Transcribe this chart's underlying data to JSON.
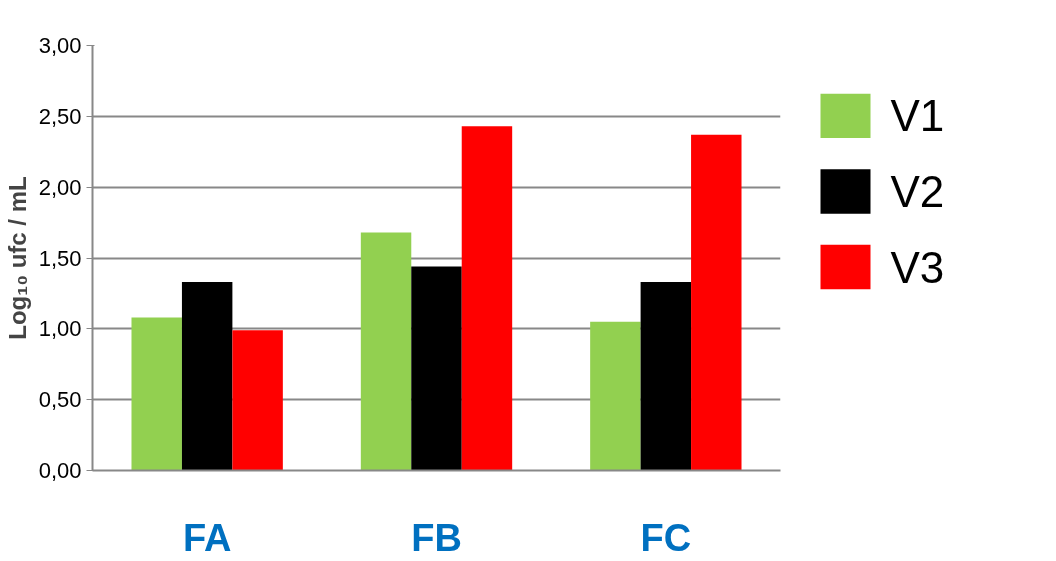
{
  "chart_data": {
    "type": "bar",
    "ylabel": "Log₁₀ ufc / mL",
    "categories": [
      "FA",
      "FB",
      "FC"
    ],
    "series": [
      {
        "name": "V1",
        "color": "#92d050",
        "values": [
          1.08,
          1.68,
          1.05
        ]
      },
      {
        "name": "V2",
        "color": "#000000",
        "values": [
          1.33,
          1.44,
          1.33
        ]
      },
      {
        "name": "V3",
        "color": "#ff0000",
        "values": [
          0.99,
          2.43,
          2.37
        ]
      }
    ],
    "ylim": [
      0,
      3
    ],
    "yticks": [
      {
        "value": 0,
        "label": "0,00"
      },
      {
        "value": 0.5,
        "label": "0,50"
      },
      {
        "value": 1,
        "label": "1,00"
      },
      {
        "value": 1.5,
        "label": "1,50"
      },
      {
        "value": 2,
        "label": "2,00"
      },
      {
        "value": 2.5,
        "label": "2,50"
      },
      {
        "value": 3,
        "label": "3,00"
      }
    ],
    "grid": "y",
    "legend": "right"
  }
}
